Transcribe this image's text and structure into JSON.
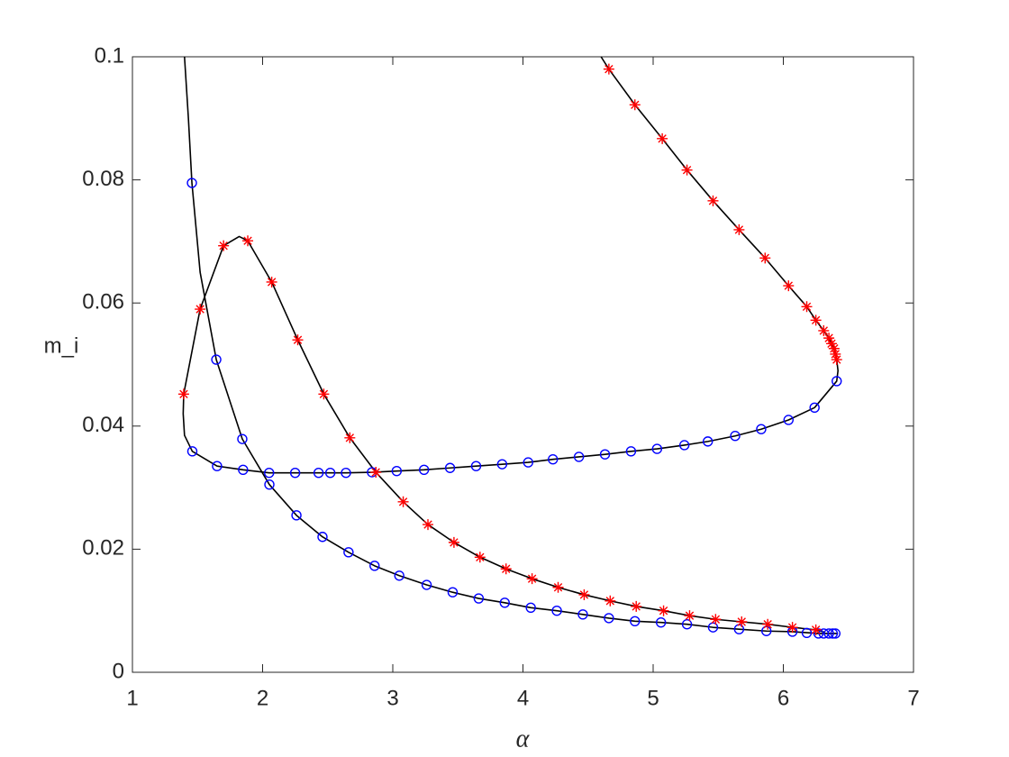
{
  "chart_data": {
    "type": "line",
    "xlabel": "α",
    "ylabel": "m_i",
    "xlim": [
      1,
      7
    ],
    "ylim": [
      0,
      0.1
    ],
    "xticks": [
      1,
      2,
      3,
      4,
      5,
      6,
      7
    ],
    "yticks": [
      0,
      0.02,
      0.04,
      0.06,
      0.08,
      0.1
    ],
    "box": true,
    "grid": false,
    "series": [
      {
        "color": "#000000",
        "linestyle": "-",
        "marker": "none",
        "x": [
          1.4,
          1.43,
          1.457,
          1.52,
          1.644,
          1.844,
          2.052,
          2.26,
          2.46,
          2.66,
          2.86,
          3.05,
          3.26,
          3.46,
          3.66,
          3.86,
          4.06,
          4.26,
          4.46,
          4.66,
          4.86,
          5.06,
          5.26,
          5.46,
          5.66,
          5.87,
          6.07,
          6.27,
          6.42
        ],
        "values": [
          0.1,
          0.09,
          0.0795,
          0.065,
          0.0508,
          0.0379,
          0.0305,
          0.0255,
          0.022,
          0.0195,
          0.0173,
          0.0157,
          0.0142,
          0.013,
          0.012,
          0.0113,
          0.0105,
          0.01,
          0.0094,
          0.0088,
          0.0083,
          0.0081,
          0.0078,
          0.0073,
          0.007,
          0.0067,
          0.0066,
          0.0063,
          0.0063
        ]
      },
      {
        "color": "#000000",
        "linestyle": "-",
        "marker": "none",
        "x": [
          4.6,
          4.66,
          4.86,
          5.07,
          5.26,
          5.46,
          5.66,
          5.86,
          6.04,
          6.18,
          6.25,
          6.31,
          6.35,
          6.39,
          6.41,
          6.42,
          6.41,
          6.24,
          6.04,
          5.83,
          5.63,
          5.42,
          5.24,
          5.03,
          4.83,
          4.63,
          4.43,
          4.23,
          4.04,
          3.84,
          3.64,
          3.44,
          3.24,
          3.03,
          2.84,
          2.64,
          2.43,
          2.25,
          2.05,
          1.85,
          1.65,
          1.46,
          1.4,
          1.39,
          1.394,
          1.52,
          1.7,
          1.82,
          1.886,
          2.07,
          2.27,
          2.47,
          2.67,
          2.87,
          3.08,
          3.27,
          3.47,
          3.67,
          3.87,
          4.07,
          4.27,
          4.47,
          4.67,
          4.87,
          5.08,
          5.28,
          5.48,
          5.68,
          5.88,
          6.07,
          6.25,
          6.32
        ],
        "values": [
          0.1,
          0.098,
          0.0922,
          0.0867,
          0.0816,
          0.0766,
          0.0719,
          0.0673,
          0.0628,
          0.0594,
          0.0572,
          0.0555,
          0.0543,
          0.0526,
          0.0508,
          0.049,
          0.0473,
          0.043,
          0.041,
          0.0395,
          0.0384,
          0.0375,
          0.0369,
          0.0363,
          0.0359,
          0.0354,
          0.035,
          0.0346,
          0.0341,
          0.0338,
          0.0335,
          0.0332,
          0.0329,
          0.0327,
          0.0325,
          0.0324,
          0.0324,
          0.0324,
          0.0324,
          0.0329,
          0.0335,
          0.0359,
          0.0385,
          0.042,
          0.0452,
          0.059,
          0.0693,
          0.0708,
          0.0701,
          0.0634,
          0.054,
          0.0452,
          0.0381,
          0.0325,
          0.0277,
          0.024,
          0.0211,
          0.0187,
          0.0168,
          0.0152,
          0.0138,
          0.0126,
          0.0116,
          0.0107,
          0.01,
          0.0092,
          0.0086,
          0.0082,
          0.0078,
          0.0073,
          0.0069,
          0.0065
        ]
      },
      {
        "color": "#0000ff",
        "linestyle": "none",
        "marker": "o",
        "x": [
          1.457,
          1.644,
          1.844,
          2.052,
          2.26,
          2.46,
          2.66,
          2.86,
          3.05,
          3.26,
          3.46,
          3.66,
          3.86,
          4.06,
          4.26,
          4.46,
          4.66,
          4.86,
          5.06,
          5.26,
          5.46,
          5.66,
          5.87,
          6.07,
          6.18,
          6.27,
          6.31,
          6.35,
          6.38,
          6.4,
          6.41,
          6.24,
          6.04,
          5.83,
          5.63,
          5.42,
          5.24,
          5.03,
          4.83,
          4.63,
          4.43,
          4.23,
          4.04,
          3.84,
          3.64,
          3.44,
          3.24,
          3.03,
          2.84,
          2.64,
          2.52,
          2.43,
          2.25,
          2.05,
          1.85,
          1.65,
          1.46
        ],
        "values": [
          0.0795,
          0.0508,
          0.0379,
          0.0305,
          0.0255,
          0.022,
          0.0195,
          0.0173,
          0.0157,
          0.0142,
          0.013,
          0.012,
          0.0113,
          0.0105,
          0.01,
          0.0094,
          0.0088,
          0.0083,
          0.0081,
          0.0078,
          0.0073,
          0.007,
          0.0067,
          0.0066,
          0.0064,
          0.0063,
          0.0063,
          0.0063,
          0.0063,
          0.0063,
          0.0473,
          0.043,
          0.041,
          0.0395,
          0.0384,
          0.0375,
          0.0369,
          0.0363,
          0.0359,
          0.0354,
          0.035,
          0.0346,
          0.0341,
          0.0338,
          0.0335,
          0.0332,
          0.0329,
          0.0327,
          0.0325,
          0.0324,
          0.0324,
          0.0324,
          0.0324,
          0.0324,
          0.0329,
          0.0335,
          0.0359
        ]
      },
      {
        "color": "#ff0000",
        "linestyle": "none",
        "marker": "*",
        "x": [
          4.66,
          4.86,
          5.07,
          5.26,
          5.46,
          5.66,
          5.86,
          6.04,
          6.18,
          6.25,
          6.31,
          6.35,
          6.37,
          6.39,
          6.4,
          6.41,
          1.394,
          1.52,
          1.7,
          1.886,
          2.07,
          2.27,
          2.47,
          2.67,
          2.87,
          3.08,
          3.27,
          3.47,
          3.67,
          3.87,
          4.07,
          4.27,
          4.47,
          4.67,
          4.87,
          5.08,
          5.28,
          5.48,
          5.68,
          5.88,
          6.07,
          6.25
        ],
        "values": [
          0.098,
          0.0922,
          0.0867,
          0.0816,
          0.0766,
          0.0719,
          0.0673,
          0.0628,
          0.0594,
          0.0572,
          0.0555,
          0.0543,
          0.0534,
          0.0526,
          0.0517,
          0.0508,
          0.0452,
          0.059,
          0.0693,
          0.0701,
          0.0634,
          0.054,
          0.0452,
          0.0381,
          0.0325,
          0.0277,
          0.024,
          0.0211,
          0.0187,
          0.0168,
          0.0152,
          0.0138,
          0.0126,
          0.0116,
          0.0107,
          0.01,
          0.0092,
          0.0086,
          0.0082,
          0.0078,
          0.0073,
          0.0069
        ]
      }
    ]
  }
}
